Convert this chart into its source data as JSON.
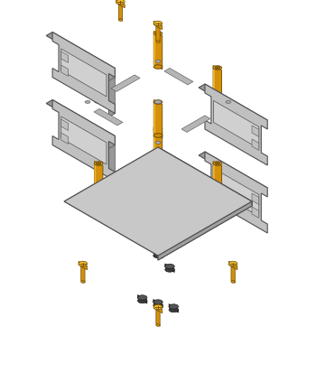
{
  "bg": "#ffffff",
  "plate_top": "#c8c8c8",
  "plate_side_r": "#a0a0a0",
  "plate_side_l": "#b8b8b8",
  "plate_edge": "#505050",
  "bracket_top": "#c0c0c0",
  "bracket_side": "#989898",
  "bracket_edge": "#505050",
  "gold": "#d4900a",
  "gold_top": "#f0b828",
  "gold_dark": "#8a5e05",
  "gold_edge": "#6a4a04",
  "pcb_top": "#111111",
  "pcb_side": "#0a0a0a",
  "pcb_edge": "#333333",
  "comp_top": "#808080",
  "comp_side": "#606060",
  "comp_edge": "#444444",
  "rubber": "#3a3a3a",
  "rubber_edge": "#1a1a1a",
  "figsize": [
    3.5,
    4.13
  ],
  "dpi": 100
}
